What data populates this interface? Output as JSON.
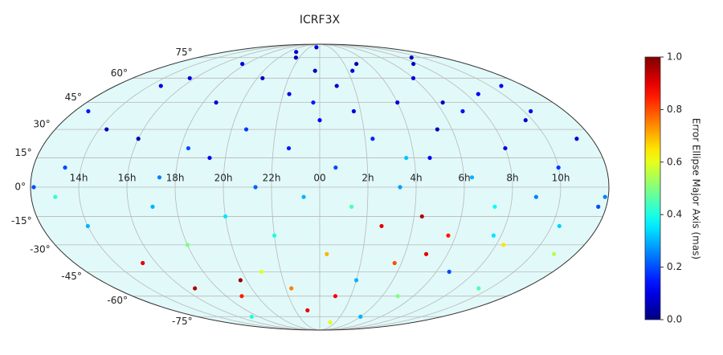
{
  "chart_data": {
    "type": "scatter",
    "projection": "mollweide",
    "title": "ICRF3X",
    "colorbar_label": "Error Ellipse Major Axis (mas)",
    "colormap": "jet",
    "background": "#e2f9f9",
    "grid": true,
    "xlim": [
      -180,
      180
    ],
    "ylim": [
      -90,
      90
    ],
    "xticks": [
      {
        "value": -150,
        "label": "14h"
      },
      {
        "value": -120,
        "label": "16h"
      },
      {
        "value": -90,
        "label": "18h"
      },
      {
        "value": -60,
        "label": "20h"
      },
      {
        "value": -30,
        "label": "22h"
      },
      {
        "value": 0,
        "label": "00"
      },
      {
        "value": 30,
        "label": "2h"
      },
      {
        "value": 60,
        "label": "4h"
      },
      {
        "value": 90,
        "label": "6h"
      },
      {
        "value": 120,
        "label": "8h"
      },
      {
        "value": 150,
        "label": "10h"
      }
    ],
    "yticks": [
      {
        "value": -75,
        "label": "-75°"
      },
      {
        "value": -60,
        "label": "-60°"
      },
      {
        "value": -45,
        "label": "-45°"
      },
      {
        "value": -30,
        "label": "-30°"
      },
      {
        "value": -15,
        "label": "-15°"
      },
      {
        "value": 0,
        "label": "0°"
      },
      {
        "value": 15,
        "label": "15°"
      },
      {
        "value": 30,
        "label": "30°"
      },
      {
        "value": 45,
        "label": "45°"
      },
      {
        "value": 60,
        "label": "60°"
      },
      {
        "value": 75,
        "label": "75°"
      }
    ],
    "clim": [
      0,
      1
    ],
    "colorbar_ticks": [
      {
        "value": 0,
        "label": "0.0"
      },
      0.2,
      0.4,
      0.6,
      0.8,
      {
        "value": 1,
        "label": "1.0"
      }
    ],
    "x": [
      -170,
      -160,
      -150,
      -140,
      -130,
      -120,
      -110,
      -100,
      -95,
      -90,
      -80,
      -75,
      -70,
      -60,
      -55,
      -50,
      -45,
      -40,
      -35,
      -30,
      -25,
      -20,
      -15,
      -10,
      -5,
      0,
      5,
      10,
      15,
      20,
      25,
      30,
      35,
      40,
      45,
      50,
      55,
      60,
      65,
      70,
      75,
      80,
      85,
      90,
      95,
      100,
      105,
      110,
      115,
      120,
      125,
      130,
      135,
      140,
      145,
      150,
      155,
      160,
      165,
      170,
      175,
      -165,
      -145,
      -125,
      -105,
      -85,
      -65,
      -45,
      -25,
      -5,
      15,
      35,
      55,
      75,
      95,
      115,
      135,
      155,
      -178,
      178,
      -10,
      20,
      -100,
      60
    ],
    "y": [
      40,
      10,
      -20,
      55,
      -40,
      25,
      -55,
      5,
      70,
      -30,
      45,
      -60,
      15,
      -15,
      60,
      30,
      -45,
      0,
      75,
      -25,
      50,
      20,
      -70,
      -5,
      65,
      35,
      -35,
      10,
      55,
      -10,
      40,
      -50,
      25,
      -20,
      70,
      0,
      -40,
      45,
      -15,
      15,
      -60,
      30,
      -25,
      60,
      5,
      -45,
      40,
      -10,
      70,
      20,
      -30,
      50,
      -5,
      -55,
      35,
      10,
      -20,
      55,
      -35,
      25,
      -10,
      -5,
      30,
      60,
      -10,
      20,
      -50,
      80,
      -55,
      45,
      -60,
      65,
      15,
      -35,
      45,
      -25,
      75,
      40,
      0,
      -5,
      85,
      -80,
      -75,
      -75
    ],
    "values": [
      0.15,
      0.2,
      0.3,
      0.1,
      0.9,
      0.05,
      0.95,
      0.25,
      0.1,
      0.5,
      0.08,
      0.85,
      0.12,
      0.35,
      0.07,
      0.18,
      0.6,
      0.22,
      0.05,
      0.4,
      0.1,
      0.15,
      0.9,
      0.3,
      0.06,
      0.12,
      0.7,
      0.2,
      0.08,
      0.45,
      0.1,
      0.3,
      0.16,
      0.9,
      0.05,
      0.28,
      0.8,
      0.09,
      0.95,
      0.12,
      0.5,
      0.06,
      0.85,
      0.1,
      0.3,
      0.2,
      0.14,
      0.38,
      0.07,
      0.1,
      0.65,
      0.12,
      0.25,
      0.45,
      0.08,
      0.18,
      0.33,
      0.11,
      0.55,
      0.09,
      0.2,
      0.42,
      0.06,
      0.1,
      0.3,
      0.2,
      0.98,
      0.08,
      0.75,
      0.15,
      0.88,
      0.1,
      0.32,
      0.9,
      0.07,
      0.35,
      0.05,
      0.13,
      0.2,
      0.25,
      0.1,
      0.6,
      0.4,
      0.3
    ]
  }
}
